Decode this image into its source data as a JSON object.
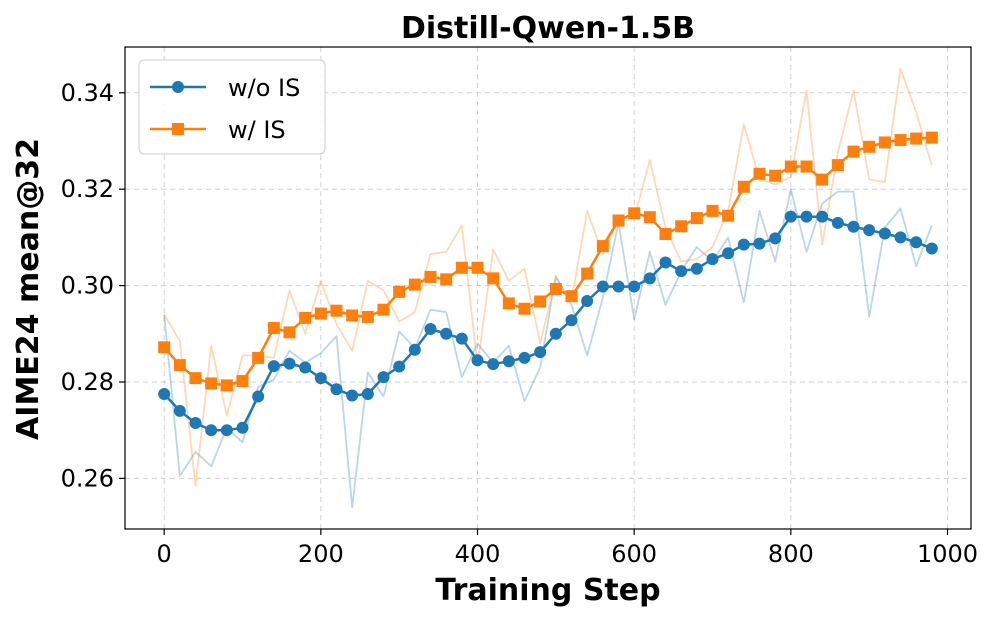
{
  "chart_data": {
    "type": "line",
    "title": "Distill-Qwen-1.5B",
    "xlabel": "Training Step",
    "ylabel": "AIME24 mean@32",
    "xlim": [
      -50,
      1030
    ],
    "ylim": [
      0.2495,
      0.3495
    ],
    "x_ticks": [
      0,
      200,
      400,
      600,
      800,
      1000
    ],
    "x_tick_labels": [
      "0",
      "200",
      "400",
      "600",
      "800",
      "1000"
    ],
    "y_ticks": [
      0.26,
      0.28,
      0.3,
      0.32,
      0.34
    ],
    "y_tick_labels": [
      "0.26",
      "0.28",
      "0.30",
      "0.32",
      "0.34"
    ],
    "grid": true,
    "legend_position": "top-left",
    "x": [
      0,
      20,
      40,
      60,
      80,
      100,
      120,
      140,
      160,
      180,
      200,
      220,
      240,
      260,
      280,
      300,
      320,
      340,
      360,
      380,
      400,
      420,
      440,
      460,
      480,
      500,
      520,
      540,
      560,
      580,
      600,
      620,
      640,
      660,
      680,
      700,
      720,
      740,
      760,
      780,
      800,
      820,
      840,
      860,
      880,
      900,
      920,
      940,
      960,
      980
    ],
    "series": [
      {
        "name": "w/o IS",
        "color": "#1f77b4",
        "marker": "circle",
        "smoothed": [
          0.2775,
          0.274,
          0.2715,
          0.27,
          0.27,
          0.2705,
          0.277,
          0.2833,
          0.2838,
          0.283,
          0.2808,
          0.2785,
          0.2772,
          0.2775,
          0.281,
          0.2832,
          0.2867,
          0.291,
          0.29,
          0.289,
          0.2845,
          0.2837,
          0.2843,
          0.285,
          0.2862,
          0.29,
          0.2928,
          0.2968,
          0.2998,
          0.2998,
          0.2998,
          0.3015,
          0.3048,
          0.303,
          0.3035,
          0.3055,
          0.3067,
          0.3085,
          0.3087,
          0.3098,
          0.3143,
          0.3143,
          0.3143,
          0.313,
          0.3122,
          0.3115,
          0.3108,
          0.31,
          0.309,
          0.3077
        ],
        "raw": [
          0.294,
          0.2605,
          0.2655,
          0.2625,
          0.2705,
          0.2675,
          0.279,
          0.2805,
          0.2865,
          0.284,
          0.286,
          0.2895,
          0.254,
          0.282,
          0.277,
          0.2905,
          0.287,
          0.295,
          0.2945,
          0.281,
          0.288,
          0.284,
          0.2875,
          0.276,
          0.283,
          0.302,
          0.296,
          0.2855,
          0.2975,
          0.313,
          0.293,
          0.307,
          0.296,
          0.303,
          0.308,
          0.305,
          0.31,
          0.2965,
          0.3155,
          0.305,
          0.32,
          0.307,
          0.317,
          0.3195,
          0.3195,
          0.2935,
          0.312,
          0.316,
          0.304,
          0.3125
        ]
      },
      {
        "name": "w/ IS",
        "color": "#ff7f0e",
        "marker": "square",
        "smoothed": [
          0.2872,
          0.2835,
          0.2808,
          0.2797,
          0.2793,
          0.2802,
          0.285,
          0.2912,
          0.2903,
          0.2933,
          0.2942,
          0.2948,
          0.2938,
          0.2935,
          0.295,
          0.2987,
          0.3002,
          0.3018,
          0.3013,
          0.3037,
          0.3037,
          0.3015,
          0.2963,
          0.2952,
          0.2967,
          0.2993,
          0.2978,
          0.3025,
          0.3082,
          0.3135,
          0.315,
          0.3142,
          0.3107,
          0.3123,
          0.314,
          0.3155,
          0.3145,
          0.3205,
          0.3232,
          0.3228,
          0.3247,
          0.3247,
          0.322,
          0.325,
          0.3278,
          0.3288,
          0.3297,
          0.3302,
          0.3305,
          0.3307
        ],
        "raw": [
          0.294,
          0.2885,
          0.2585,
          0.2875,
          0.273,
          0.2855,
          0.2855,
          0.285,
          0.299,
          0.29,
          0.301,
          0.292,
          0.2865,
          0.301,
          0.299,
          0.2925,
          0.2945,
          0.3065,
          0.307,
          0.3125,
          0.2835,
          0.3075,
          0.301,
          0.3035,
          0.288,
          0.3015,
          0.297,
          0.3155,
          0.3065,
          0.314,
          0.314,
          0.326,
          0.312,
          0.305,
          0.3055,
          0.308,
          0.3155,
          0.3335,
          0.322,
          0.321,
          0.3225,
          0.3405,
          0.3085,
          0.3275,
          0.3405,
          0.322,
          0.3215,
          0.345,
          0.336,
          0.325
        ]
      }
    ]
  }
}
